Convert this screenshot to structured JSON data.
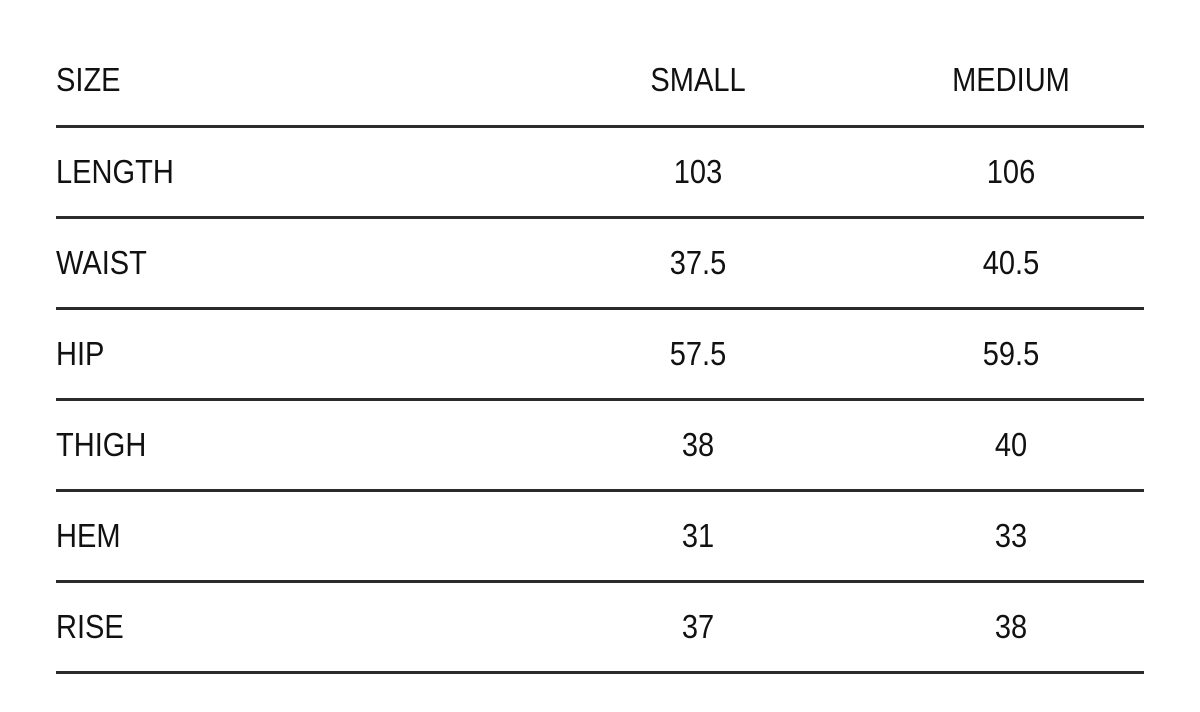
{
  "table": {
    "header": {
      "label": "SIZE",
      "small": "SMALL",
      "medium": "MEDIUM"
    },
    "rows": [
      {
        "label": "LENGTH",
        "small": "103",
        "medium": "106"
      },
      {
        "label": "WAIST",
        "small": "37.5",
        "medium": "40.5"
      },
      {
        "label": "HIP",
        "small": "57.5",
        "medium": "59.5"
      },
      {
        "label": "THIGH",
        "small": "38",
        "medium": "40"
      },
      {
        "label": "HEM",
        "small": "31",
        "medium": "33"
      },
      {
        "label": "RISE",
        "small": "37",
        "medium": "38"
      }
    ]
  }
}
